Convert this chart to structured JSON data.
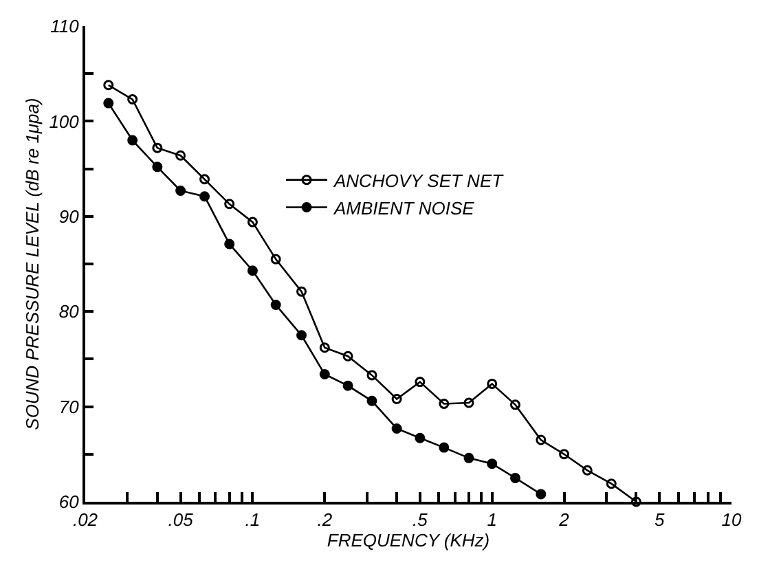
{
  "chart_data": {
    "type": "line",
    "xlabel": "FREQUENCY (KHz)",
    "ylabel": "SOUND PRESSURE LEVEL (dB re 1μpa)",
    "log": "x",
    "series": [
      {
        "name": "ANCHOVY SET NET",
        "color": "#000000",
        "marker": "circle-open",
        "x": [
          0.025,
          0.0315,
          0.04,
          0.05,
          0.063,
          0.08,
          0.1,
          0.125,
          0.16,
          0.2,
          0.25,
          0.315,
          0.4,
          0.5,
          0.63,
          0.8,
          1,
          1.25,
          1.6,
          2,
          2.5,
          3.15,
          4
        ],
        "values": [
          103.8,
          102.3,
          97.2,
          96.4,
          93.9,
          91.3,
          89.4,
          85.5,
          82.1,
          76.2,
          75.3,
          73.3,
          70.8,
          72.6,
          70.3,
          70.4,
          72.4,
          70.2,
          66.5,
          65.0,
          63.3,
          61.9,
          60
        ]
      },
      {
        "name": "AMBIENT NOISE",
        "color": "#000000",
        "marker": "circle",
        "x": [
          0.025,
          0.0315,
          0.04,
          0.05,
          0.063,
          0.08,
          0.1,
          0.125,
          0.16,
          0.2,
          0.25,
          0.315,
          0.4,
          0.5,
          0.63,
          0.8,
          1,
          1.25,
          1.6
        ],
        "values": [
          101.9,
          98.0,
          95.2,
          92.7,
          92.1,
          87.1,
          84.3,
          80.7,
          77.5,
          73.4,
          72.2,
          70.6,
          67.7,
          66.7,
          65.7,
          64.6,
          64.0,
          62.5,
          60.8
        ]
      }
    ],
    "xlim": [
      0.02,
      10
    ],
    "xticks": [
      {
        "value": 0.02,
        "label": ".02"
      },
      {
        "value": 0.03,
        "label": null
      },
      {
        "value": 0.04,
        "label": null
      },
      {
        "value": 0.05,
        "label": ".05"
      },
      {
        "value": 0.06,
        "label": null
      },
      {
        "value": 0.07,
        "label": null
      },
      {
        "value": 0.08,
        "label": null
      },
      {
        "value": 0.09,
        "label": null
      },
      {
        "value": 0.1,
        "label": ".1"
      },
      {
        "value": 0.2,
        "label": ".2"
      },
      {
        "value": 0.3,
        "label": null
      },
      {
        "value": 0.4,
        "label": null
      },
      {
        "value": 0.5,
        "label": ".5"
      },
      {
        "value": 0.6,
        "label": null
      },
      {
        "value": 0.7,
        "label": null
      },
      {
        "value": 0.8,
        "label": null
      },
      {
        "value": 0.9,
        "label": null
      },
      1,
      2,
      {
        "value": 3,
        "label": null
      },
      {
        "value": 4,
        "label": null
      },
      5,
      {
        "value": 6,
        "label": null
      },
      {
        "value": 7,
        "label": null
      },
      {
        "value": 8,
        "label": null
      },
      {
        "value": 9,
        "label": null
      },
      10
    ],
    "ylim": [
      60,
      110
    ],
    "yticks": [
      60,
      {
        "value": 65,
        "label": null
      },
      70,
      {
        "value": 75,
        "label": null
      },
      80,
      {
        "value": 85,
        "label": null
      },
      90,
      {
        "value": 95,
        "label": null
      },
      100,
      {
        "value": 105,
        "label": null
      },
      110
    ],
    "grid": false,
    "legend": "top right",
    "line_style": "solid"
  }
}
